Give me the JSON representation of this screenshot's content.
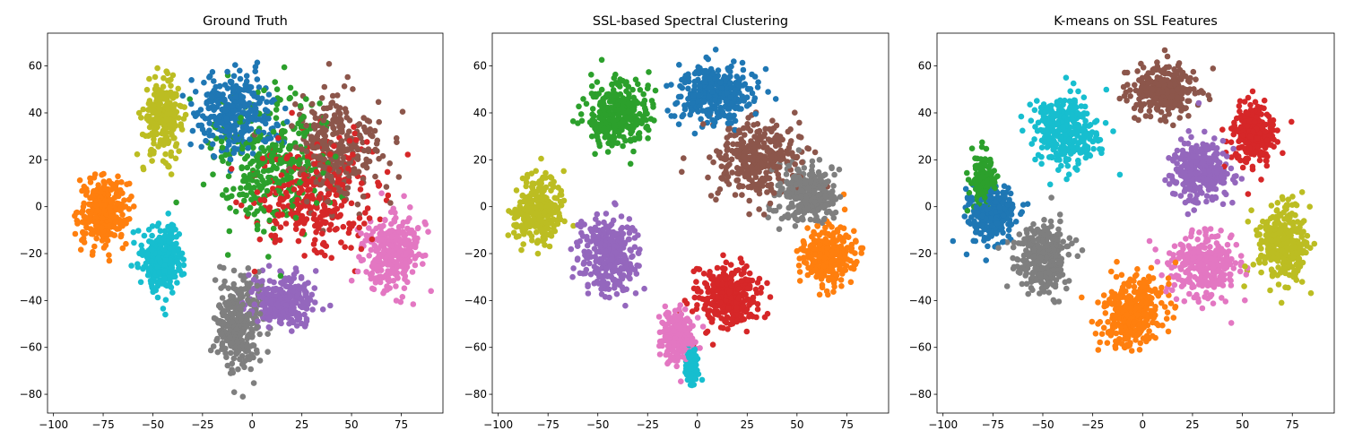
{
  "figure": {
    "panels": [
      {
        "title": "Ground Truth"
      },
      {
        "title": "SSL-based Spectral Clustering"
      },
      {
        "title": "K-means on SSL Features"
      }
    ]
  },
  "chart_data": [
    {
      "type": "scatter",
      "title": "Ground Truth",
      "xlabel": "",
      "ylabel": "",
      "xlim": [
        -103,
        96
      ],
      "ylim": [
        -88,
        74
      ],
      "xticks": [
        -100,
        -75,
        -50,
        -25,
        0,
        25,
        50,
        75
      ],
      "yticks": [
        -80,
        -60,
        -40,
        -20,
        0,
        20,
        40,
        60
      ],
      "grid": false,
      "legend": "none",
      "clusters": [
        {
          "color": "#bcbd22",
          "center": [
            -45,
            38
          ],
          "spread": [
            9,
            14
          ],
          "weight": 0.8
        },
        {
          "color": "#ff7f0e",
          "center": [
            -75,
            -2
          ],
          "spread": [
            11,
            13
          ],
          "weight": 0.9
        },
        {
          "color": "#17becf",
          "center": [
            -45,
            -22
          ],
          "spread": [
            9,
            13
          ],
          "weight": 0.9
        },
        {
          "color": "#1f77b4",
          "center": [
            -8,
            40
          ],
          "spread": [
            18,
            15
          ],
          "weight": 1.0
        },
        {
          "color": "#2ca02c",
          "center": [
            10,
            20
          ],
          "spread": [
            28,
            28
          ],
          "weight": 1.0
        },
        {
          "color": "#d62728",
          "center": [
            30,
            5
          ],
          "spread": [
            28,
            22
          ],
          "weight": 1.0
        },
        {
          "color": "#8c564b",
          "center": [
            42,
            25
          ],
          "spread": [
            20,
            20
          ],
          "weight": 0.9
        },
        {
          "color": "#e377c2",
          "center": [
            70,
            -20
          ],
          "spread": [
            13,
            15
          ],
          "weight": 0.9
        },
        {
          "color": "#9467bd",
          "center": [
            15,
            -40
          ],
          "spread": [
            15,
            10
          ],
          "weight": 0.9
        },
        {
          "color": "#7f7f7f",
          "center": [
            -7,
            -50
          ],
          "spread": [
            10,
            18
          ],
          "weight": 0.9
        }
      ]
    },
    {
      "type": "scatter",
      "title": "SSL-based Spectral Clustering",
      "xlabel": "",
      "ylabel": "",
      "xlim": [
        -103,
        96
      ],
      "ylim": [
        -88,
        74
      ],
      "xticks": [
        -100,
        -75,
        -50,
        -25,
        0,
        25,
        50,
        75
      ],
      "yticks": [
        -80,
        -60,
        -40,
        -20,
        0,
        20,
        40,
        60
      ],
      "grid": false,
      "legend": "none",
      "clusters": [
        {
          "color": "#2ca02c",
          "center": [
            -40,
            40
          ],
          "spread": [
            14,
            13
          ],
          "weight": 1.0
        },
        {
          "color": "#1f77b4",
          "center": [
            10,
            48
          ],
          "spread": [
            17,
            11
          ],
          "weight": 1.0
        },
        {
          "color": "#8c564b",
          "center": [
            30,
            20
          ],
          "spread": [
            20,
            15
          ],
          "weight": 1.0
        },
        {
          "color": "#7f7f7f",
          "center": [
            55,
            5
          ],
          "spread": [
            13,
            12
          ],
          "weight": 0.9
        },
        {
          "color": "#bcbd22",
          "center": [
            -80,
            -2
          ],
          "spread": [
            11,
            12
          ],
          "weight": 0.9
        },
        {
          "color": "#9467bd",
          "center": [
            -45,
            -20
          ],
          "spread": [
            13,
            14
          ],
          "weight": 1.0
        },
        {
          "color": "#ff7f0e",
          "center": [
            65,
            -20
          ],
          "spread": [
            12,
            11
          ],
          "weight": 0.9
        },
        {
          "color": "#d62728",
          "center": [
            15,
            -38
          ],
          "spread": [
            14,
            11
          ],
          "weight": 1.0
        },
        {
          "color": "#e377c2",
          "center": [
            -10,
            -55
          ],
          "spread": [
            7,
            11
          ],
          "weight": 0.7
        },
        {
          "color": "#17becf",
          "center": [
            -3,
            -68
          ],
          "spread": [
            3,
            7
          ],
          "weight": 0.3
        }
      ]
    },
    {
      "type": "scatter",
      "title": "K-means on SSL Features",
      "xlabel": "",
      "ylabel": "",
      "xlim": [
        -103,
        96
      ],
      "ylim": [
        -88,
        74
      ],
      "xticks": [
        -100,
        -75,
        -50,
        -25,
        0,
        25,
        50,
        75
      ],
      "yticks": [
        -80,
        -60,
        -40,
        -20,
        0,
        20,
        40,
        60
      ],
      "grid": false,
      "legend": "none",
      "clusters": [
        {
          "color": "#17becf",
          "center": [
            -38,
            32
          ],
          "spread": [
            15,
            14
          ],
          "weight": 1.0
        },
        {
          "color": "#2ca02c",
          "center": [
            -80,
            10
          ],
          "spread": [
            5,
            10
          ],
          "weight": 0.5
        },
        {
          "color": "#1f77b4",
          "center": [
            -75,
            -3
          ],
          "spread": [
            11,
            11
          ],
          "weight": 0.8
        },
        {
          "color": "#7f7f7f",
          "center": [
            -50,
            -22
          ],
          "spread": [
            12,
            14
          ],
          "weight": 1.0
        },
        {
          "color": "#8c564b",
          "center": [
            10,
            50
          ],
          "spread": [
            15,
            10
          ],
          "weight": 0.9
        },
        {
          "color": "#d62728",
          "center": [
            55,
            30
          ],
          "spread": [
            10,
            12
          ],
          "weight": 0.8
        },
        {
          "color": "#9467bd",
          "center": [
            30,
            15
          ],
          "spread": [
            14,
            12
          ],
          "weight": 0.9
        },
        {
          "color": "#e377c2",
          "center": [
            30,
            -25
          ],
          "spread": [
            15,
            12
          ],
          "weight": 0.9
        },
        {
          "color": "#bcbd22",
          "center": [
            70,
            -15
          ],
          "spread": [
            12,
            15
          ],
          "weight": 0.9
        },
        {
          "color": "#ff7f0e",
          "center": [
            -5,
            -45
          ],
          "spread": [
            15,
            15
          ],
          "weight": 1.0
        }
      ]
    }
  ]
}
